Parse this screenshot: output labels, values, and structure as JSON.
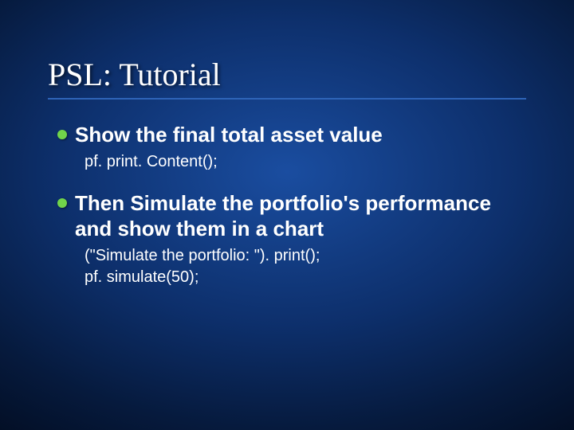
{
  "slide": {
    "title": "PSL: Tutorial",
    "background_gradient": {
      "inner": "#1a4da0",
      "mid": "#0d2f6b",
      "outer": "#020b1e"
    },
    "underline_color": "#2e64b8",
    "bullet_color": "#71d44a",
    "title_fontsize": 40,
    "body_fontsize": 26,
    "code_fontsize": 20,
    "items": [
      {
        "text": "Show the final total asset value",
        "code": "pf. print. Content();"
      },
      {
        "text": "Then Simulate the portfolio's performance and show them in a chart",
        "code": "(\"Simulate the portfolio: \"). print();\npf. simulate(50);"
      }
    ]
  }
}
